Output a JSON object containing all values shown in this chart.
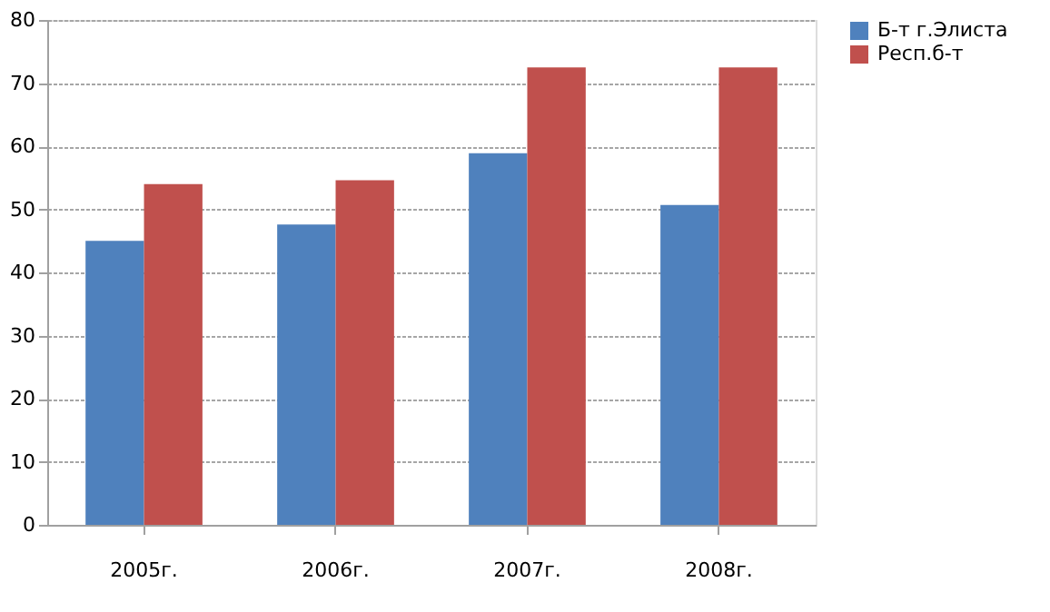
{
  "chart_data": {
    "type": "bar",
    "categories": [
      "2005г.",
      "2006г.",
      "2007г.",
      "2008г."
    ],
    "series": [
      {
        "name": "Б-т г.Элиста",
        "color": "#4f81bd",
        "values": [
          45,
          47.6,
          58.9,
          50.7
        ]
      },
      {
        "name": "Респ.б-т",
        "color": "#c0504d",
        "values": [
          54,
          54.6,
          72.5,
          72.5
        ]
      }
    ],
    "ylim": [
      0,
      80
    ],
    "yticks": [
      0,
      10,
      20,
      30,
      40,
      50,
      60,
      70,
      80
    ],
    "grid": "y",
    "legend": "right"
  }
}
